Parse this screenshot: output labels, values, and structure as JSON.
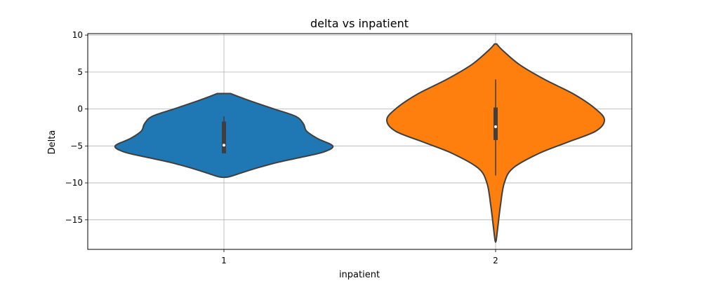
{
  "chart_data": {
    "type": "violin",
    "title": "delta vs inpatient",
    "xlabel": "inpatient",
    "ylabel": "Delta",
    "categories": [
      "1",
      "2"
    ],
    "ylim": [
      -19,
      10.2
    ],
    "yticks": [
      10,
      5,
      0,
      -5,
      -10,
      -15
    ],
    "grid": true,
    "series": [
      {
        "category": "1",
        "color": "#1f77b4",
        "min": -9.2,
        "max": 2.1,
        "q1": -6.0,
        "median": -4.9,
        "q3": -1.7,
        "whisker_low": -6.0,
        "whisker_high": -1.0,
        "density": [
          [
            2.1,
            0.06
          ],
          [
            1.7,
            0.13
          ],
          [
            1.0,
            0.26
          ],
          [
            0.0,
            0.46
          ],
          [
            -1.0,
            0.66
          ],
          [
            -2.0,
            0.73
          ],
          [
            -3.0,
            0.76
          ],
          [
            -4.0,
            0.86
          ],
          [
            -5.0,
            1.0
          ],
          [
            -5.8,
            0.92
          ],
          [
            -6.5,
            0.72
          ],
          [
            -7.2,
            0.5
          ],
          [
            -8.0,
            0.3
          ],
          [
            -8.7,
            0.15
          ],
          [
            -9.2,
            0.04
          ]
        ]
      },
      {
        "category": "2",
        "color": "#ff7f0e",
        "min": -17.8,
        "max": 8.8,
        "q1": -4.2,
        "median": -2.4,
        "q3": 0.2,
        "whisker_low": -9.0,
        "whisker_high": 4.0,
        "density": [
          [
            8.8,
            0.01
          ],
          [
            8.0,
            0.06
          ],
          [
            6.0,
            0.22
          ],
          [
            4.0,
            0.45
          ],
          [
            2.0,
            0.72
          ],
          [
            0.0,
            0.92
          ],
          [
            -1.5,
            1.0
          ],
          [
            -3.0,
            0.92
          ],
          [
            -4.5,
            0.66
          ],
          [
            -6.0,
            0.4
          ],
          [
            -8.0,
            0.16
          ],
          [
            -10.0,
            0.08
          ],
          [
            -13.0,
            0.045
          ],
          [
            -16.0,
            0.02
          ],
          [
            -17.8,
            0.005
          ]
        ]
      }
    ]
  }
}
